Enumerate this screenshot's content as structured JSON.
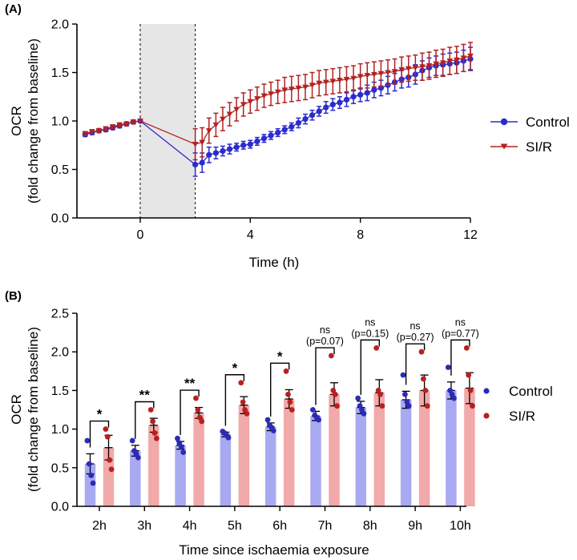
{
  "colors": {
    "control_line": "#2b2bd0",
    "sir_line": "#b22222",
    "control_bar": "#a9a9f2",
    "sir_bar": "#f2a9a9",
    "control_dot": "#2b2bb8",
    "sir_dot": "#b82020",
    "shade": "#e6e6e6"
  },
  "chart_data": [
    {
      "panel": "(A)",
      "type": "line",
      "xlabel": "Time (h)",
      "ylabel_line1": "OCR",
      "ylabel_line2": "(fold change from baseline)",
      "xlim": [
        -2.3,
        12
      ],
      "ylim": [
        0,
        2.0
      ],
      "xticks": [
        0,
        4,
        8,
        12
      ],
      "yticks": [
        "0.0",
        "0.5",
        "1.0",
        "1.5",
        "2.0"
      ],
      "shaded_interval": [
        0,
        2
      ],
      "legend": [
        "Control",
        "SI/R"
      ],
      "series": [
        {
          "name": "Control",
          "x": [
            -2.0,
            -1.75,
            -1.5,
            -1.25,
            -1.0,
            -0.75,
            -0.5,
            -0.25,
            0.0,
            2.0,
            2.25,
            2.5,
            2.75,
            3.0,
            3.25,
            3.5,
            3.75,
            4.0,
            4.25,
            4.5,
            4.75,
            5.0,
            5.25,
            5.5,
            5.75,
            6.0,
            6.25,
            6.5,
            6.75,
            7.0,
            7.25,
            7.5,
            7.75,
            8.0,
            8.25,
            8.5,
            8.75,
            9.0,
            9.25,
            9.5,
            9.75,
            10.0,
            10.25,
            10.5,
            10.75,
            11.0,
            11.25,
            11.5,
            11.75,
            12.0
          ],
          "y": [
            0.86,
            0.88,
            0.9,
            0.91,
            0.93,
            0.95,
            0.97,
            0.99,
            1.0,
            0.55,
            0.57,
            0.65,
            0.67,
            0.69,
            0.71,
            0.73,
            0.75,
            0.76,
            0.79,
            0.82,
            0.85,
            0.88,
            0.91,
            0.94,
            0.98,
            1.02,
            1.06,
            1.1,
            1.14,
            1.17,
            1.19,
            1.22,
            1.25,
            1.27,
            1.29,
            1.32,
            1.34,
            1.37,
            1.4,
            1.43,
            1.45,
            1.48,
            1.52,
            1.55,
            1.57,
            1.58,
            1.59,
            1.6,
            1.62,
            1.64
          ],
          "err": [
            0.02,
            0.02,
            0.02,
            0.02,
            0.02,
            0.02,
            0.02,
            0.02,
            0.01,
            0.12,
            0.1,
            0.08,
            0.06,
            0.05,
            0.05,
            0.04,
            0.04,
            0.04,
            0.04,
            0.04,
            0.04,
            0.04,
            0.04,
            0.04,
            0.05,
            0.05,
            0.05,
            0.05,
            0.06,
            0.06,
            0.06,
            0.07,
            0.07,
            0.07,
            0.08,
            0.08,
            0.08,
            0.09,
            0.09,
            0.09,
            0.1,
            0.1,
            0.1,
            0.1,
            0.1,
            0.11,
            0.11,
            0.11,
            0.11,
            0.12
          ]
        },
        {
          "name": "SI/R",
          "x": [
            -2.0,
            -1.75,
            -1.5,
            -1.25,
            -1.0,
            -0.75,
            -0.5,
            -0.25,
            0.0,
            2.0,
            2.25,
            2.5,
            2.75,
            3.0,
            3.25,
            3.5,
            3.75,
            4.0,
            4.25,
            4.5,
            4.75,
            5.0,
            5.25,
            5.5,
            5.75,
            6.0,
            6.25,
            6.5,
            6.75,
            7.0,
            7.25,
            7.5,
            7.75,
            8.0,
            8.25,
            8.5,
            8.75,
            9.0,
            9.25,
            9.5,
            9.75,
            10.0,
            10.25,
            10.5,
            10.75,
            11.0,
            11.25,
            11.5,
            11.75,
            12.0
          ],
          "y": [
            0.87,
            0.89,
            0.9,
            0.92,
            0.94,
            0.96,
            0.97,
            0.99,
            1.0,
            0.76,
            0.78,
            0.9,
            0.96,
            1.02,
            1.07,
            1.12,
            1.17,
            1.2,
            1.23,
            1.26,
            1.28,
            1.3,
            1.32,
            1.33,
            1.34,
            1.35,
            1.37,
            1.39,
            1.4,
            1.41,
            1.42,
            1.43,
            1.44,
            1.46,
            1.47,
            1.48,
            1.49,
            1.5,
            1.51,
            1.53,
            1.54,
            1.55,
            1.56,
            1.57,
            1.59,
            1.6,
            1.62,
            1.63,
            1.65,
            1.67
          ],
          "err": [
            0.02,
            0.02,
            0.02,
            0.02,
            0.02,
            0.02,
            0.02,
            0.02,
            0.01,
            0.16,
            0.15,
            0.13,
            0.12,
            0.12,
            0.12,
            0.12,
            0.12,
            0.12,
            0.12,
            0.12,
            0.12,
            0.12,
            0.13,
            0.13,
            0.13,
            0.13,
            0.13,
            0.13,
            0.13,
            0.13,
            0.13,
            0.13,
            0.13,
            0.13,
            0.13,
            0.13,
            0.13,
            0.13,
            0.13,
            0.13,
            0.13,
            0.13,
            0.14,
            0.14,
            0.14,
            0.14,
            0.14,
            0.14,
            0.14,
            0.14
          ]
        }
      ]
    },
    {
      "panel": "(B)",
      "type": "bar",
      "xlabel": "Time since ischaemia exposure",
      "ylabel_line1": "OCR",
      "ylabel_line2": "(fold change from baseline)",
      "ylim": [
        0,
        2.5
      ],
      "yticks": [
        "0.0",
        "0.5",
        "1.0",
        "1.5",
        "2.0",
        "2.5"
      ],
      "categories": [
        "2h",
        "3h",
        "4h",
        "5h",
        "6h",
        "7h",
        "8h",
        "9h",
        "10h"
      ],
      "legend": [
        "Control",
        "SI/R"
      ],
      "series": [
        {
          "name": "Control",
          "values": [
            0.55,
            0.72,
            0.79,
            0.93,
            1.03,
            1.17,
            1.28,
            1.38,
            1.5
          ],
          "err": [
            0.13,
            0.07,
            0.05,
            0.03,
            0.05,
            0.06,
            0.08,
            0.11,
            0.11
          ],
          "points": [
            [
              0.85,
              0.55,
              0.4,
              0.3
            ],
            [
              0.85,
              0.72,
              0.68,
              0.63
            ],
            [
              0.88,
              0.82,
              0.77,
              0.7
            ],
            [
              0.97,
              0.95,
              0.92,
              0.89
            ],
            [
              1.12,
              1.05,
              1.02,
              0.98
            ],
            [
              1.25,
              1.18,
              1.15,
              1.12
            ],
            [
              1.4,
              1.3,
              1.25,
              1.2
            ],
            [
              1.7,
              1.45,
              1.35,
              1.3
            ],
            [
              1.8,
              1.5,
              1.45,
              1.4
            ]
          ]
        },
        {
          "name": "SI/R",
          "values": [
            0.76,
            1.05,
            1.21,
            1.31,
            1.39,
            1.45,
            1.47,
            1.5,
            1.53
          ],
          "err": [
            0.16,
            0.09,
            0.07,
            0.11,
            0.12,
            0.15,
            0.17,
            0.2,
            0.2
          ],
          "points": [
            [
              1.0,
              0.9,
              0.6,
              0.48
            ],
            [
              1.25,
              1.1,
              0.95,
              0.88
            ],
            [
              1.4,
              1.25,
              1.15,
              1.1
            ],
            [
              1.6,
              1.35,
              1.25,
              1.2
            ],
            [
              1.75,
              1.45,
              1.35,
              1.25
            ],
            [
              1.95,
              1.5,
              1.45,
              1.3
            ],
            [
              2.05,
              1.5,
              1.45,
              1.3
            ],
            [
              2.0,
              1.65,
              1.5,
              1.3
            ],
            [
              2.05,
              1.7,
              1.5,
              1.3
            ]
          ]
        }
      ],
      "significance": [
        "*",
        "**",
        "**",
        "*",
        "*",
        "ns",
        "ns",
        "ns",
        "ns"
      ],
      "p_values": [
        "",
        "",
        "",
        "",
        "",
        "(p=0.07)",
        "(p=0.15)",
        "(p=0.27)",
        "(p=0.77)"
      ]
    }
  ]
}
